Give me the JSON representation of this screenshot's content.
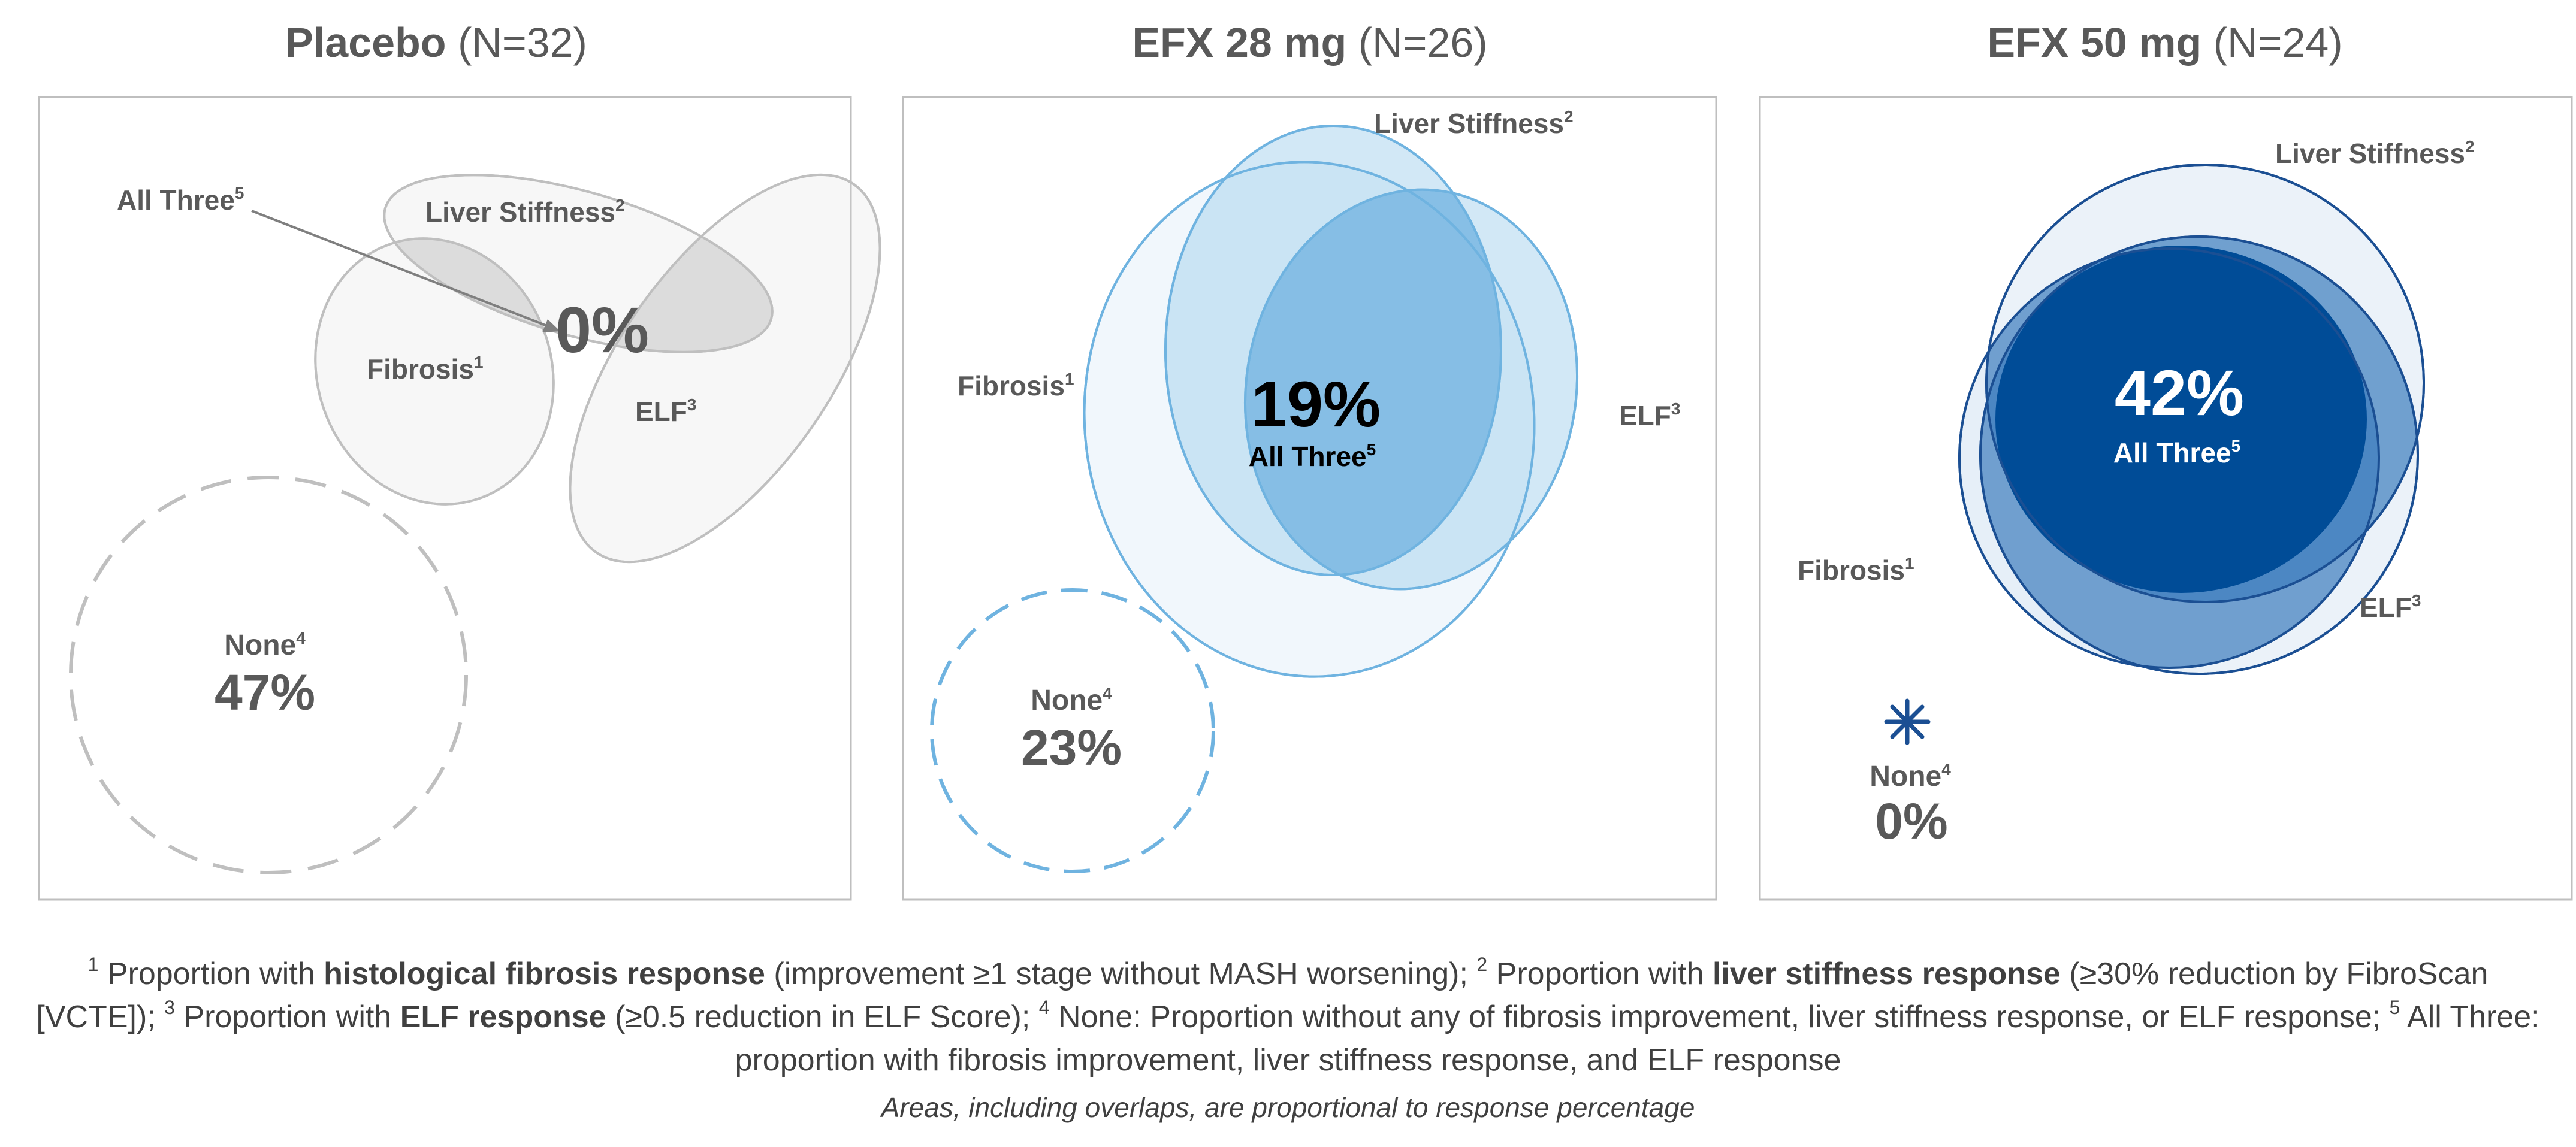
{
  "panels": [
    {
      "id": "placebo",
      "arm_name": "Placebo",
      "arm_n": " (N=32)",
      "fibrosis_label": "Fibrosis",
      "fibrosis_sup": "1",
      "liver_label": "Liver Stiffness",
      "liver_sup": "2",
      "elf_label": "ELF",
      "elf_sup": "3",
      "none_label": "None",
      "none_sup": "4",
      "none_pct": "47%",
      "all_three_label": "All Three",
      "all_three_sup": "5",
      "all_three_pct": "0%",
      "colors": {
        "fill": "#d9d9d9",
        "stroke": "#bfbfbf",
        "text": "#595959",
        "none_stroke": "#bfbfbf"
      }
    },
    {
      "id": "efx28",
      "arm_name": "EFX 28 mg",
      "arm_n": " (N=26)",
      "fibrosis_label": "Fibrosis",
      "fibrosis_sup": "1",
      "liver_label": "Liver Stiffness",
      "liver_sup": "2",
      "elf_label": "ELF",
      "elf_sup": "3",
      "none_label": "None",
      "none_sup": "4",
      "none_pct": "23%",
      "all_three_label": "All Three",
      "all_three_sup": "5",
      "all_three_pct": "19%",
      "colors": {
        "fill": "#7cb8e4",
        "stroke": "#6fb3e0",
        "text": "#000000",
        "none_stroke": "#6fb3e0"
      }
    },
    {
      "id": "efx50",
      "arm_name": "EFX 50 mg",
      "arm_n": " (N=24)",
      "fibrosis_label": "Fibrosis",
      "fibrosis_sup": "1",
      "liver_label": "Liver Stiffness",
      "liver_sup": "2",
      "elf_label": "ELF",
      "elf_sup": "3",
      "none_label": "None",
      "none_sup": "4",
      "none_pct": "0%",
      "all_three_label": "All Three",
      "all_three_sup": "5",
      "all_three_pct": "42%",
      "colors": {
        "fill": "#1f5fa3",
        "stroke": "#1b4f93",
        "text": "#ffffff",
        "center": "#004c97"
      }
    }
  ],
  "footnotes": {
    "f1_sup": "1",
    "f1_pre": " Proportion with ",
    "f1_bold": "histological fibrosis response",
    "f1_post": " (improvement ≥1 stage without MASH worsening); ",
    "f2_sup": "2",
    "f2_pre": " Proportion with ",
    "f2_bold": "liver stiffness response",
    "f2_post": " (≥30% reduction by FibroScan [VCTE]); ",
    "f3_sup": "3",
    "f3_pre": " Proportion with ",
    "f3_bold": "ELF response",
    "f3_post": " (≥0.5 reduction in ELF Score); ",
    "f4_sup": "4",
    "f4_text": " None: Proportion without any of fibrosis improvement, liver stiffness response, or ELF response; ",
    "f5_sup": "5",
    "f5_text": " All Three: proportion with fibrosis improvement, liver stiffness response, and ELF response"
  },
  "caption": "Areas, including overlaps, are proportional to response percentage"
}
